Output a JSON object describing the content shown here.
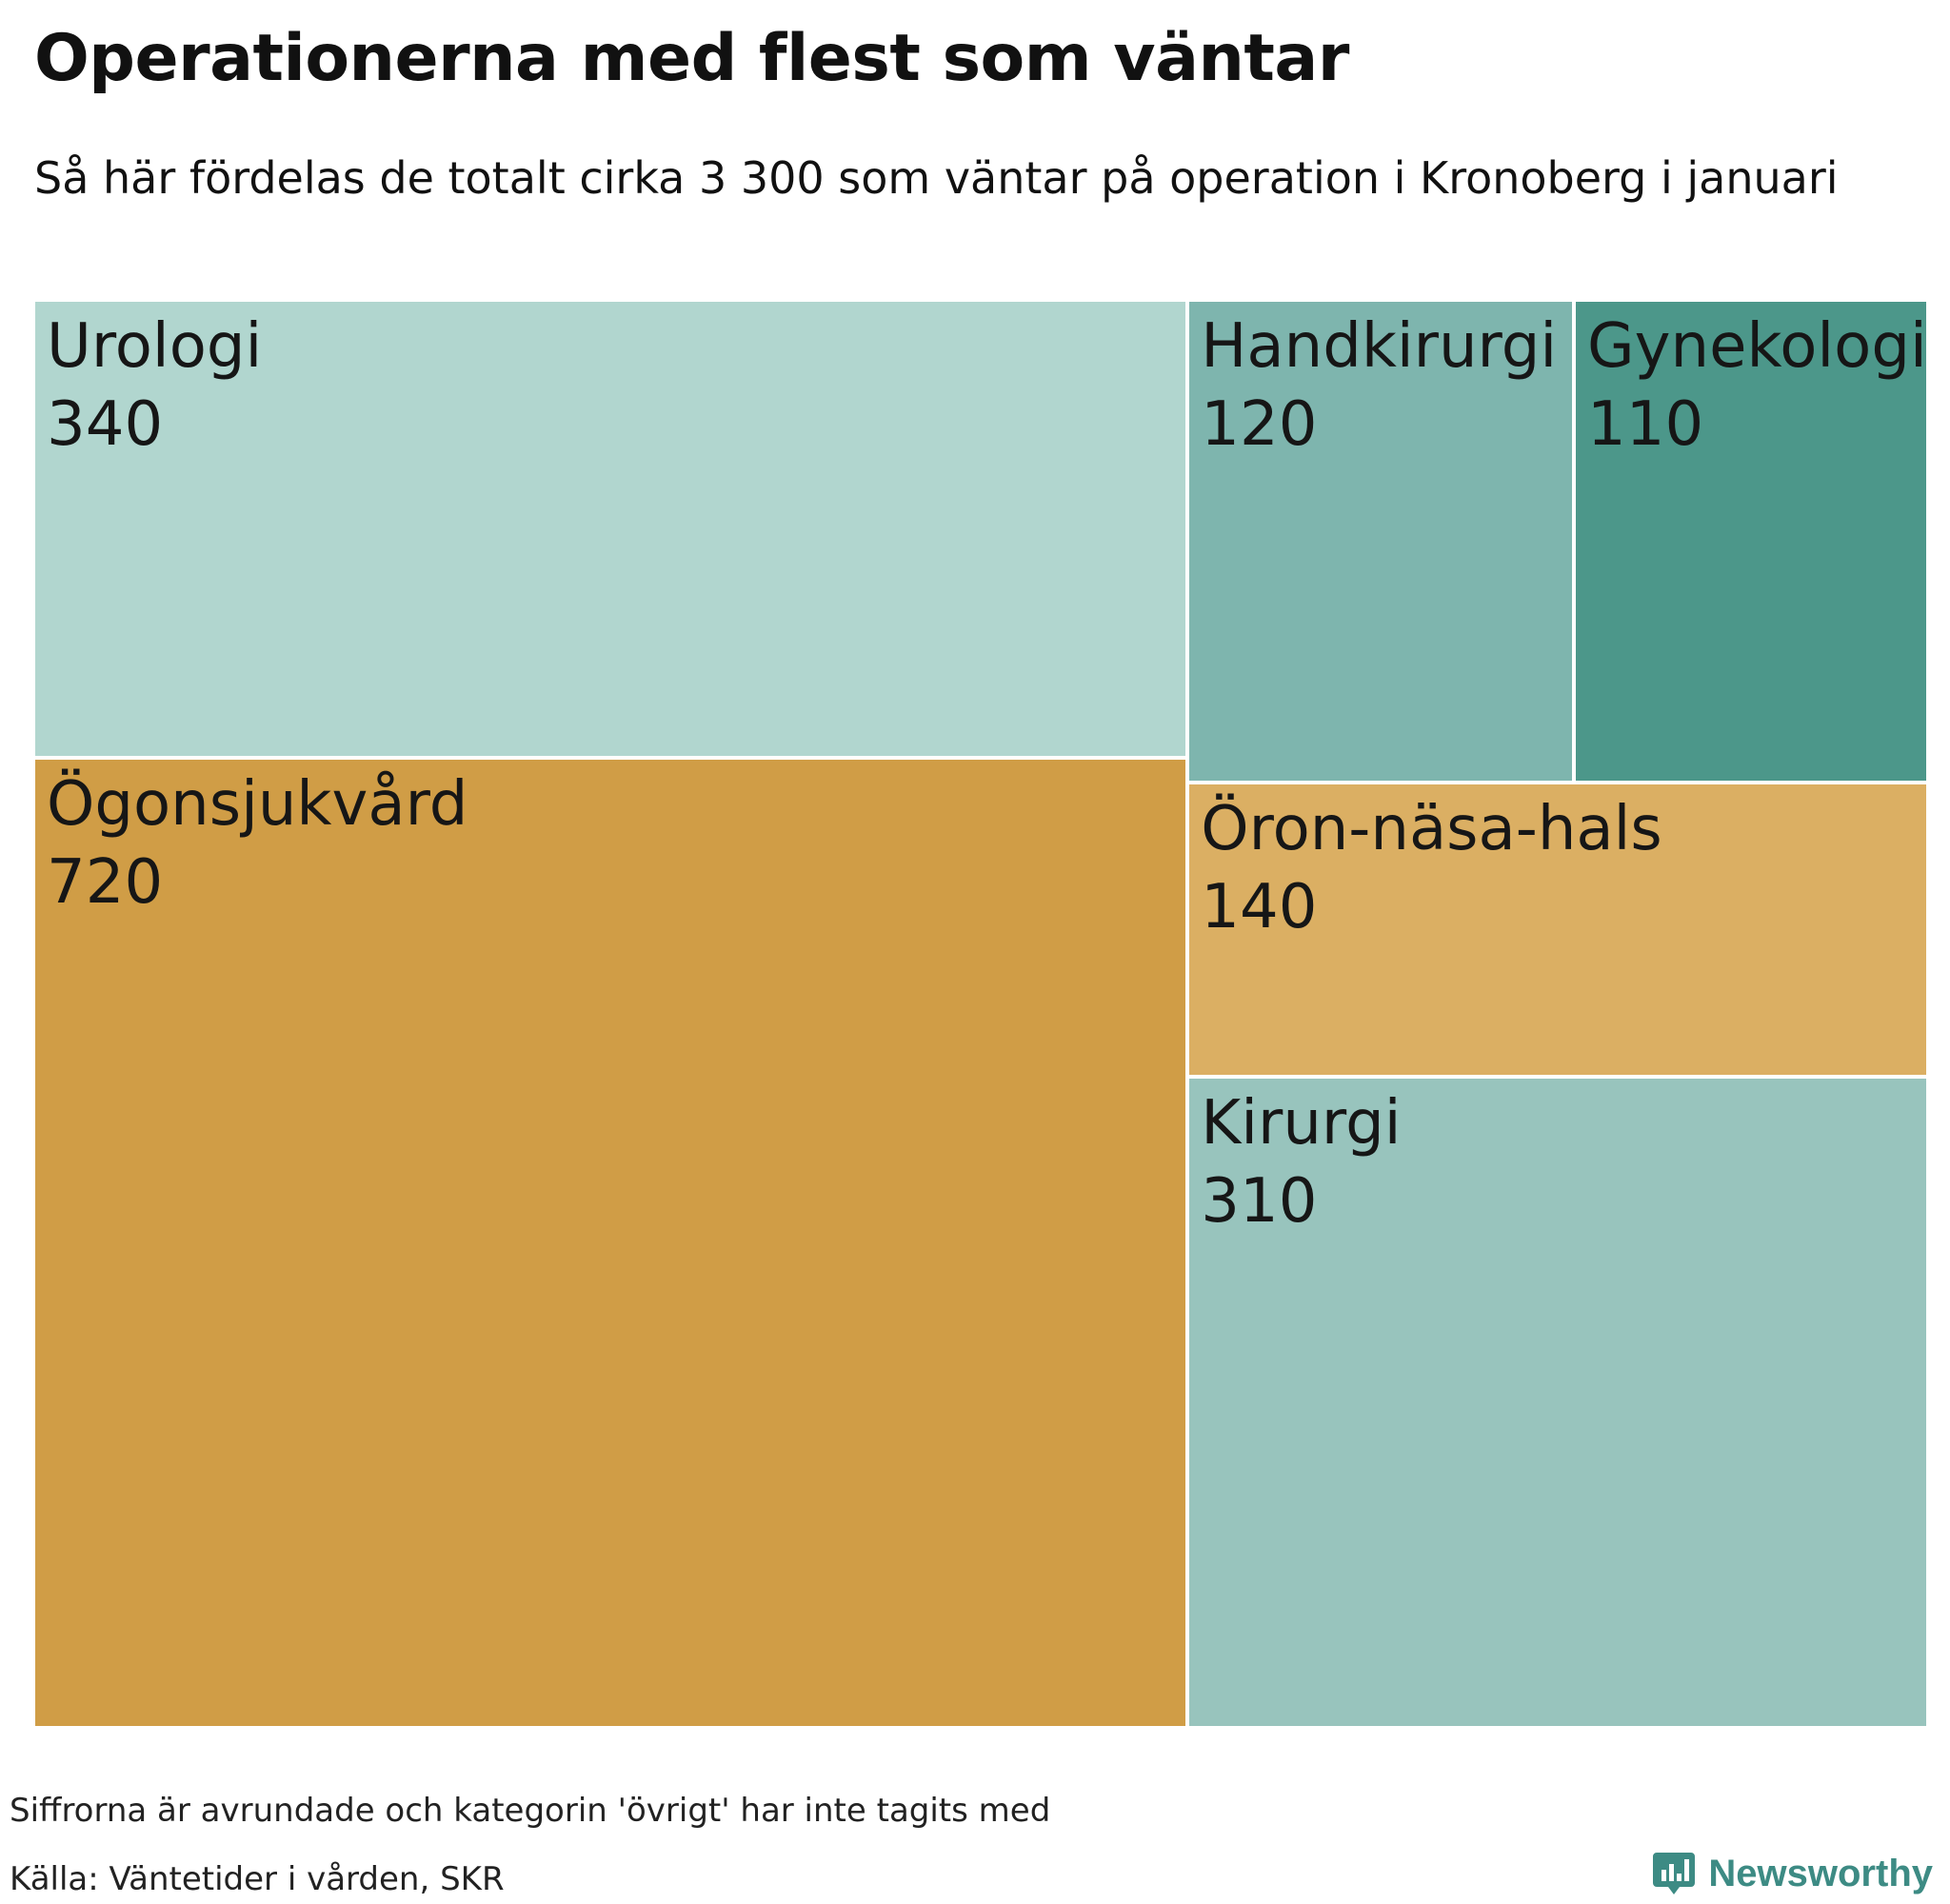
{
  "header": {
    "title": "Operationerna med flest som väntar",
    "subtitle": "Så här fördelas de totalt cirka 3 300 som väntar på operation i Kronoberg i januari"
  },
  "chart_data": {
    "type": "treemap",
    "title": "Operationerna med flest som väntar",
    "subtitle": "Så här fördelas de totalt cirka 3 300 som väntar på operation i Kronoberg i januari",
    "items": [
      {
        "name": "Urologi",
        "value": 340,
        "color": "#b1d6cf"
      },
      {
        "name": "Ögonsjukvård",
        "value": 720,
        "color": "#d09d46"
      },
      {
        "name": "Handkirurgi",
        "value": 120,
        "color": "#7eb5ae"
      },
      {
        "name": "Gynekologi",
        "value": 110,
        "color": "#4c978a"
      },
      {
        "name": "Öron-näsa-hals",
        "value": 140,
        "color": "#dbaf63"
      },
      {
        "name": "Kirurgi",
        "value": 310,
        "color": "#98c4bd"
      }
    ]
  },
  "footer": {
    "note": "Siffrorna är avrundade och kategorin 'övrigt' har inte tagits med",
    "source": "Källa: Väntetider i vården, SKR",
    "brand": "Newsworthy",
    "brand_color": "#3d8b84"
  }
}
